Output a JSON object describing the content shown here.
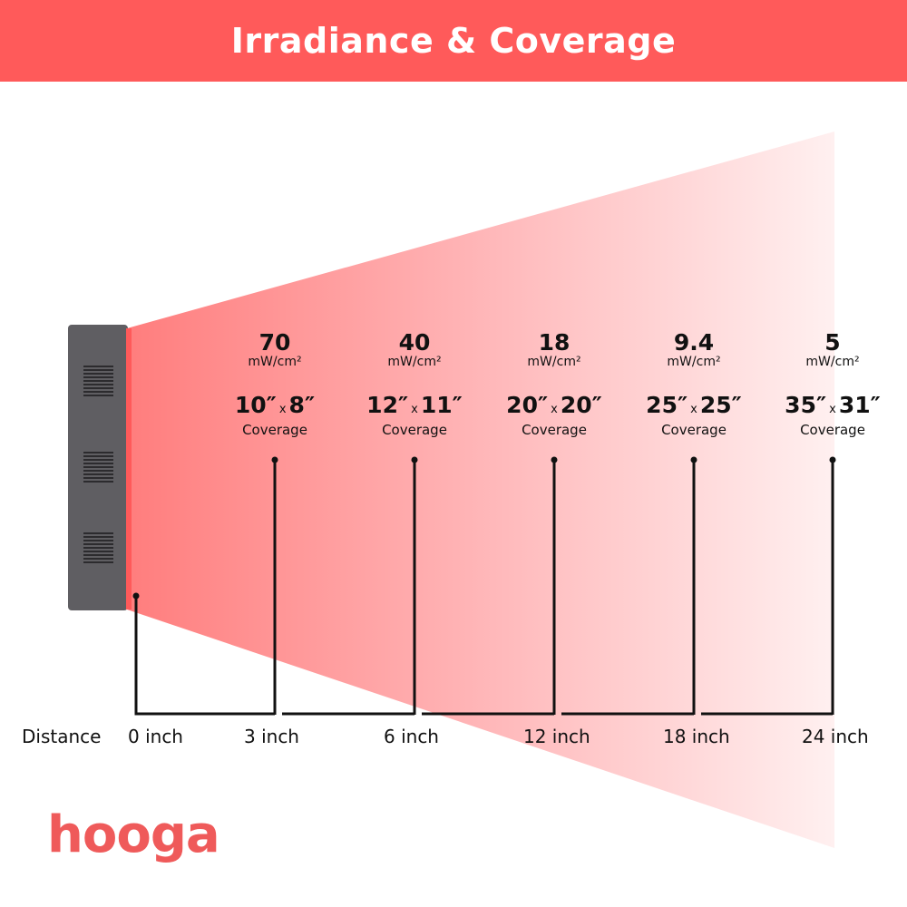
{
  "title": "Irradiance & Coverage",
  "colors": {
    "header": "#ff5a5a",
    "beam_start": "#ff7d7d",
    "beam_end": "#fff0f0",
    "device": "#5f5e62",
    "logo": "#ef5a5a"
  },
  "columns": [
    {
      "irradiance": "70",
      "unit": "mW/cm²",
      "cov_w": "10″",
      "cov_h": "8″",
      "cov_x": "x",
      "cov_label": "Coverage",
      "distance": "3 inch"
    },
    {
      "irradiance": "40",
      "unit": "mW/cm²",
      "cov_w": "12″",
      "cov_h": "11″",
      "cov_x": "x",
      "cov_label": "Coverage",
      "distance": "6 inch"
    },
    {
      "irradiance": "18",
      "unit": "mW/cm²",
      "cov_w": "20″",
      "cov_h": "20″",
      "cov_x": "x",
      "cov_label": "Coverage",
      "distance": "12 inch"
    },
    {
      "irradiance": "9.4",
      "unit": "mW/cm²",
      "cov_w": "25″",
      "cov_h": "25″",
      "cov_x": "x",
      "cov_label": "Coverage",
      "distance": "18 inch"
    },
    {
      "irradiance": "5",
      "unit": "mW/cm²",
      "cov_w": "35″",
      "cov_h": "31″",
      "cov_x": "x",
      "cov_label": "Coverage",
      "distance": "24 inch"
    }
  ],
  "distance_label": "Distance",
  "origin_distance": "0 inch",
  "logo": "hooga"
}
